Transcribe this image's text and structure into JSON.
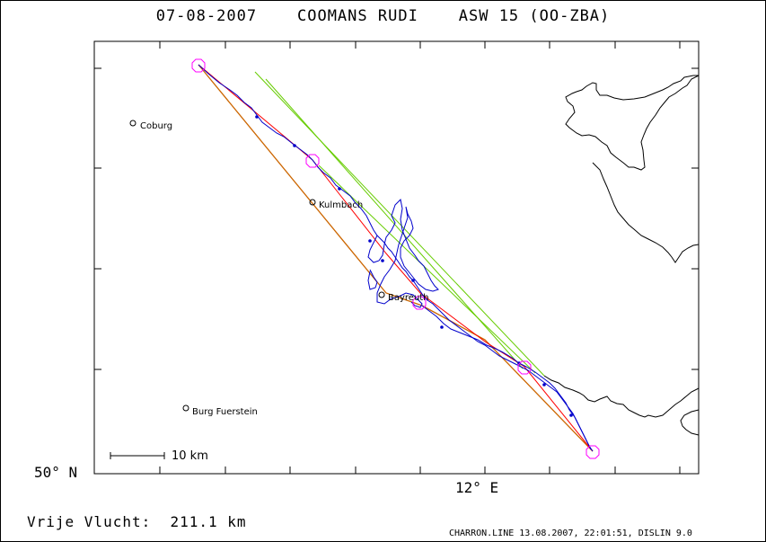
{
  "header": {
    "title": "07-08-2007    COOMANS RUDI    ASW 15 (OO-ZBA)"
  },
  "axes": {
    "y_label": "50° N",
    "x_label": "12° E"
  },
  "map": {
    "places": [
      {
        "name": "Coburg"
      },
      {
        "name": "Kulmbach"
      },
      {
        "name": "Bayreuth"
      },
      {
        "name": "Burg Fuerstein"
      }
    ],
    "scale_label": "10 km",
    "colors": {
      "track": "#0000cc",
      "task": "#ff0000",
      "leg": "#cc6600",
      "sector": "#66cc00",
      "turnpoint": "#ff00ff",
      "border": "#000000"
    }
  },
  "stats": {
    "distance": "Vrije Vlucht:  211.1 km"
  },
  "footer": {
    "text": "CHARRON.LINE 13.08.2007, 22:01:51, DISLIN 9.0"
  }
}
